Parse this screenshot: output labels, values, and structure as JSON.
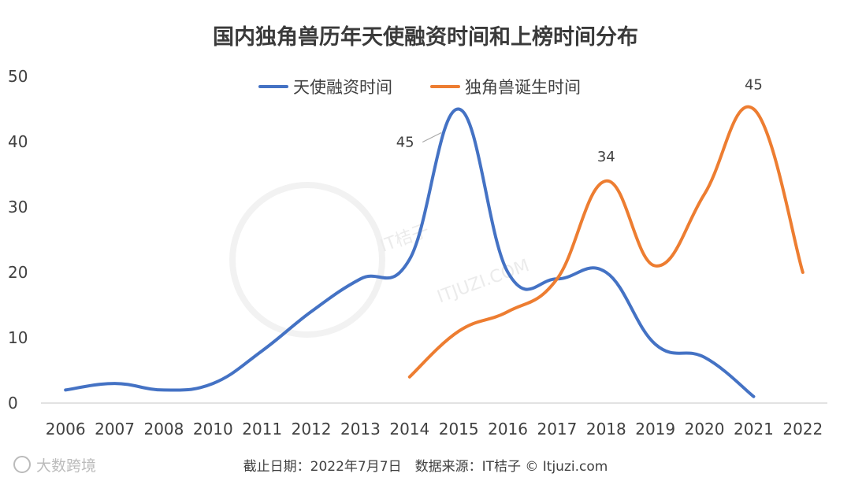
{
  "chart_data": {
    "type": "line",
    "title": "国内独角兽历年天使融资时间和上榜时间分布",
    "categories": [
      "2006",
      "2007",
      "2008",
      "2010",
      "2011",
      "2012",
      "2013",
      "2014",
      "2015",
      "2016",
      "2017",
      "2018",
      "2019",
      "2020",
      "2021",
      "2022"
    ],
    "ylim": [
      0,
      50
    ],
    "yticks": [
      0,
      10,
      20,
      30,
      40,
      50
    ],
    "grid": false,
    "legend_position": "top-center",
    "series": [
      {
        "name": "天使融资时间",
        "color": "#4472c4",
        "values": [
          2,
          3,
          2,
          3,
          8,
          14,
          19,
          22,
          45,
          20,
          19,
          20,
          9,
          7,
          1,
          null
        ]
      },
      {
        "name": "独角兽诞生时间",
        "color": "#ed7d31",
        "values": [
          null,
          null,
          null,
          null,
          null,
          null,
          null,
          4,
          11,
          14,
          19,
          34,
          21,
          32,
          45,
          20
        ]
      }
    ],
    "annotations": [
      {
        "series": 0,
        "index": 8,
        "text": "45"
      },
      {
        "series": 1,
        "index": 11,
        "text": "34"
      },
      {
        "series": 1,
        "index": 14,
        "text": "45"
      }
    ]
  },
  "footer": {
    "source": "截止日期：2022年7月7日　数据来源：IT桔子 © Itjuzi.com"
  },
  "watermarks": {
    "center_text": "IT桔子",
    "center_url": "ITJUZI.COM",
    "corner_text": "大数跨境"
  }
}
